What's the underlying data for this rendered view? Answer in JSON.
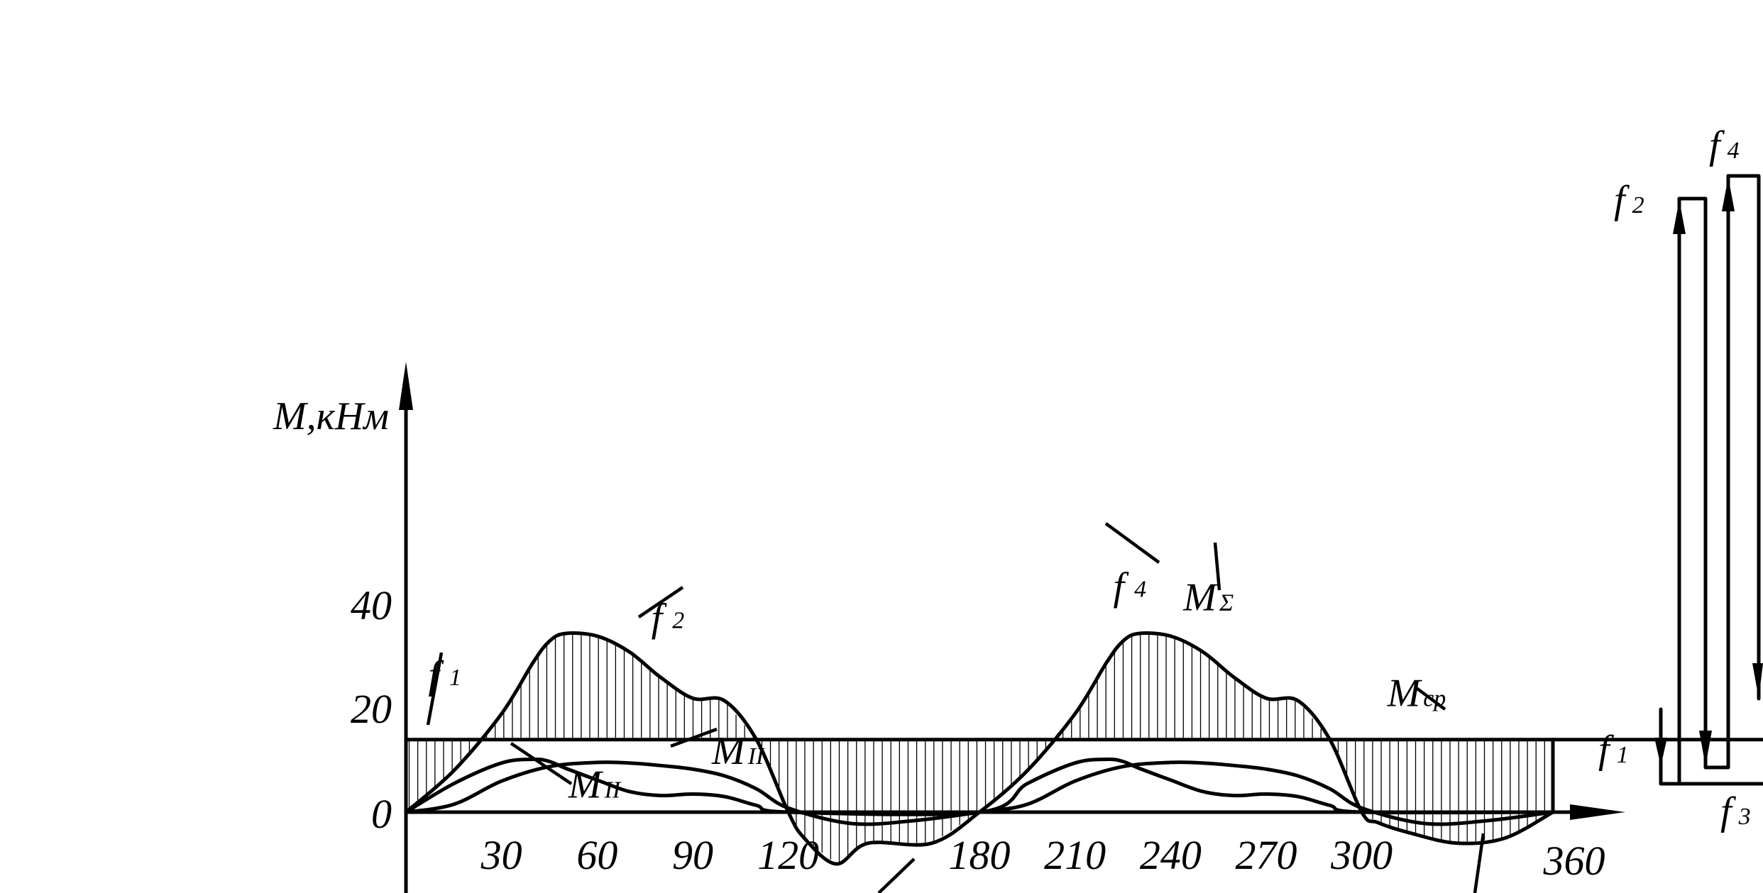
{
  "chart_data": {
    "type": "line",
    "ylabel": "M,кНм",
    "yticks": [
      0,
      20,
      40
    ],
    "xticks": [
      30,
      60,
      90,
      120,
      180,
      210,
      240,
      270,
      300,
      360
    ],
    "xlim": [
      0,
      360
    ],
    "ylim": [
      -14,
      46
    ],
    "grid": false,
    "series": [
      {
        "name": "MΣ",
        "x": [
          0,
          15,
          30,
          40,
          45,
          50,
          60,
          70,
          80,
          90,
          100,
          110,
          120,
          125,
          135,
          145,
          165,
          180,
          195,
          210,
          220,
          225,
          230,
          240,
          250,
          260,
          270,
          280,
          290,
          300,
          305,
          315,
          330,
          345,
          360
        ],
        "y": [
          0,
          8,
          19,
          29,
          33,
          34.5,
          34,
          31,
          26,
          22,
          21.5,
          14,
          0,
          -5,
          -10,
          -6,
          -6,
          0,
          8,
          19,
          29,
          33,
          34.5,
          34,
          31,
          26,
          22,
          21.5,
          14,
          0,
          -2,
          -4,
          -6,
          -5,
          0
        ]
      },
      {
        "name": "MII",
        "x": [
          0,
          15,
          30,
          45,
          60,
          70,
          80,
          90,
          100,
          110,
          120,
          140,
          160,
          180,
          195,
          210,
          225,
          240,
          250,
          260,
          270,
          280,
          290,
          300,
          320,
          340,
          360
        ],
        "y": [
          0,
          1.5,
          6,
          8.8,
          9.6,
          9.5,
          9,
          8.3,
          7,
          4.5,
          0.8,
          -2.2,
          -1.6,
          0,
          1.5,
          6,
          8.8,
          9.6,
          9.5,
          9,
          8.3,
          7,
          4.5,
          0.8,
          -2.2,
          -1.6,
          0
        ]
      },
      {
        "name": "MII",
        "x": [
          0,
          15,
          30,
          40,
          45,
          50,
          60,
          70,
          80,
          90,
          100,
          110,
          120,
          180,
          195,
          210,
          220,
          225,
          230,
          240,
          250,
          260,
          270,
          280,
          290,
          300,
          360
        ],
        "y": [
          0,
          5.5,
          9.5,
          10.2,
          9.8,
          8.5,
          6.2,
          4,
          3.2,
          3.5,
          3,
          1.3,
          0,
          0,
          5.5,
          9.5,
          10.2,
          9.8,
          8.5,
          6.2,
          4,
          3.2,
          3.5,
          3,
          1.3,
          0,
          0
        ]
      },
      {
        "name": "Mср",
        "x": [
          0,
          360
        ],
        "y": [
          14,
          14
        ]
      }
    ],
    "annotations": [
      {
        "text": "f",
        "sub": "1",
        "x": 7,
        "y": 24
      },
      {
        "text": "f",
        "sub": "2",
        "x": 77,
        "y": 35
      },
      {
        "text": "f",
        "sub": "4",
        "x": 222,
        "y": 41
      },
      {
        "text": "M",
        "sub": "Σ",
        "x": 244,
        "y": 39
      },
      {
        "text": "M",
        "sub": "ср",
        "x": 308,
        "y": 20.5
      },
      {
        "text": "M",
        "sub": "II",
        "x": 96,
        "y": 9.3
      },
      {
        "text": "M",
        "sub": "II",
        "x": 51,
        "y": 2.8
      }
    ],
    "bar_diagram": {
      "bars": [
        {
          "name": "f",
          "sub": "1",
          "dir": "down"
        },
        {
          "name": "f",
          "sub": "2",
          "dir": "up"
        },
        {
          "name": "f",
          "sub": "3",
          "dir": "down"
        },
        {
          "name": "f",
          "sub": "4",
          "dir": "up"
        }
      ]
    }
  }
}
